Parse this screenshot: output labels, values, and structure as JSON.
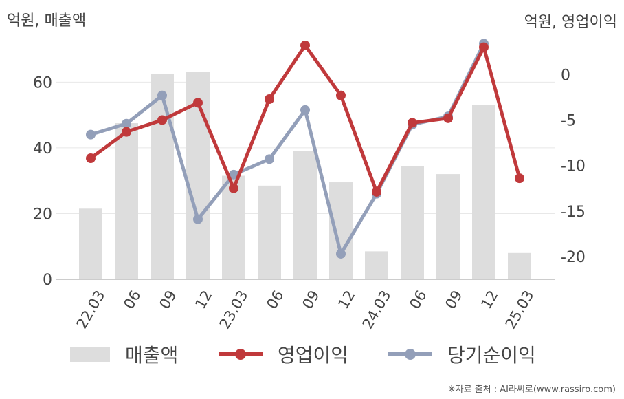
{
  "titles": {
    "left_axis": "억원, 매출액",
    "right_axis": "억원, 영업이익"
  },
  "source": "※자료 출처 : AI라씨로(www.rassiro.com)",
  "legend": {
    "revenue": "매출액",
    "operating_profit": "영업이익",
    "net_income": "당기순이익"
  },
  "colors": {
    "revenue": "#dddddd",
    "operating_profit": "#c0393b",
    "net_income": "#939fb9",
    "grid": "#e8e8e8",
    "axis": "#bbbbbb"
  },
  "chart_data": {
    "type": "bar",
    "categories": [
      "22.03",
      "06",
      "09",
      "12",
      "23.03",
      "06",
      "09",
      "12",
      "24.03",
      "06",
      "09",
      "12",
      "25.03"
    ],
    "y_left": {
      "label": "억원, 매출액",
      "ylim": [
        0,
        72
      ],
      "ticks": [
        0,
        20,
        40,
        60
      ]
    },
    "y_right": {
      "label": "억원, 영업이익",
      "ylim": [
        -22.5,
        3.5
      ],
      "ticks": [
        0,
        -5,
        -10,
        -15,
        -20
      ]
    },
    "grid": true,
    "legend_position": "bottom",
    "series": [
      {
        "name": "매출액",
        "type": "bar",
        "axis": "left",
        "values": [
          21.5,
          47.5,
          62.5,
          63,
          31.5,
          28.5,
          39,
          29.5,
          8.5,
          34.5,
          32,
          53,
          8
        ]
      },
      {
        "name": "영업이익",
        "type": "line",
        "axis": "right",
        "values": [
          -9.2,
          -6.3,
          -5.0,
          -3.1,
          -12.5,
          -2.7,
          3.2,
          -2.3,
          -12.9,
          -5.3,
          -4.8,
          3.0,
          -11.4
        ]
      },
      {
        "name": "당기순이익",
        "type": "line",
        "axis": "right",
        "values": [
          -6.6,
          -5.4,
          -2.3,
          -15.9,
          -11.0,
          -9.3,
          -3.9,
          -19.7,
          -13.1,
          -5.5,
          -4.6,
          3.4,
          null
        ]
      }
    ]
  }
}
